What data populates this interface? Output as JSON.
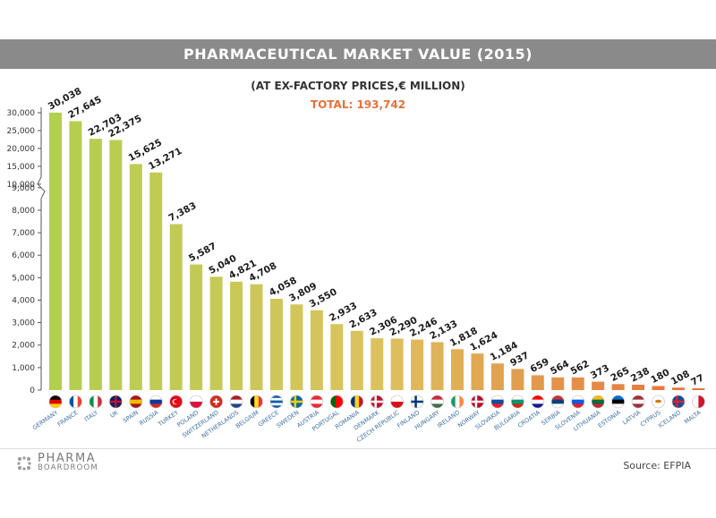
{
  "header": {
    "title": "PHARMACEUTICAL MARKET VALUE (2015)",
    "subtitle": "(AT EX-FACTORY PRICES,€ MILLION)",
    "total": "TOTAL: 193,742"
  },
  "footer": {
    "logo_top": "PHARMA",
    "logo_bottom": "BOARDROOM",
    "source": "Source: EFPIA"
  },
  "chart_data": {
    "type": "bar",
    "title": "PHARMACEUTICAL MARKET VALUE (2015)",
    "subtitle": "(AT EX-FACTORY PRICES,€ MILLION)",
    "total": "TOTAL: 193,742",
    "categories": [
      "GERMANY",
      "FRANCE",
      "ITALY",
      "UK",
      "SPAIN",
      "RUSSIA",
      "TURKEY",
      "POLAND",
      "SWITZERLAND",
      "NETHERLANDS",
      "BELGIUM",
      "GREECE",
      "SWEDEN",
      "AUSTRIA",
      "PORTUGAL",
      "ROMANIA",
      "DENMARK",
      "CZECH REPUBLIC",
      "FINLAND",
      "HUNGARY",
      "IRELAND",
      "NORWAY",
      "SLOVAKIA",
      "BULGARIA",
      "CROATIA",
      "SERBIA",
      "SLOVENIA",
      "LITHUANIA",
      "ESTONIA",
      "LATVIA",
      "CYPRUS",
      "ICELAND",
      "MALTA"
    ],
    "values": [
      30038,
      27645,
      22703,
      22375,
      15625,
      13271,
      7383,
      5587,
      5040,
      4821,
      4708,
      4058,
      3809,
      3550,
      2933,
      2633,
      2306,
      2290,
      2246,
      2133,
      1818,
      1624,
      1184,
      937,
      659,
      564,
      562,
      373,
      265,
      238,
      180,
      108,
      77
    ],
    "value_labels": [
      "30,038",
      "27,645",
      "22,703",
      "22,375",
      "15,625",
      "13,271",
      "7,383",
      "5,587",
      "5,040",
      "4,821",
      "4,708",
      "4,058",
      "3,809",
      "3,550",
      "2,933",
      "2,633",
      "2,306",
      "2,290",
      "2,246",
      "2,133",
      "1,818",
      "1,624",
      "1,184",
      "937",
      "659",
      "564",
      "562",
      "373",
      "265",
      "238",
      "180",
      "108",
      "77"
    ],
    "y_ticks_lower": [
      0,
      1000,
      2000,
      3000,
      4000,
      5000,
      6000,
      7000,
      8000,
      9000
    ],
    "y_ticks_upper": [
      10000,
      15000,
      20000,
      25000,
      30000
    ],
    "y_tick_labels_lower": [
      "0",
      "1,000",
      "2,000",
      "3,000",
      "4,000",
      "5,000",
      "6,000",
      "7,000",
      "8,000",
      "9,000"
    ],
    "y_tick_labels_upper": [
      "10,000",
      "15,000",
      "20,000",
      "25,000",
      "30,000"
    ],
    "axis_break": 9000,
    "grid": false,
    "legend": "none",
    "colors": {
      "green": "#b2cf4e",
      "mid": "#dcc25e",
      "orange": "#e8703a",
      "title_bar": "#8a8a8a",
      "total_text": "#e8703a"
    }
  }
}
